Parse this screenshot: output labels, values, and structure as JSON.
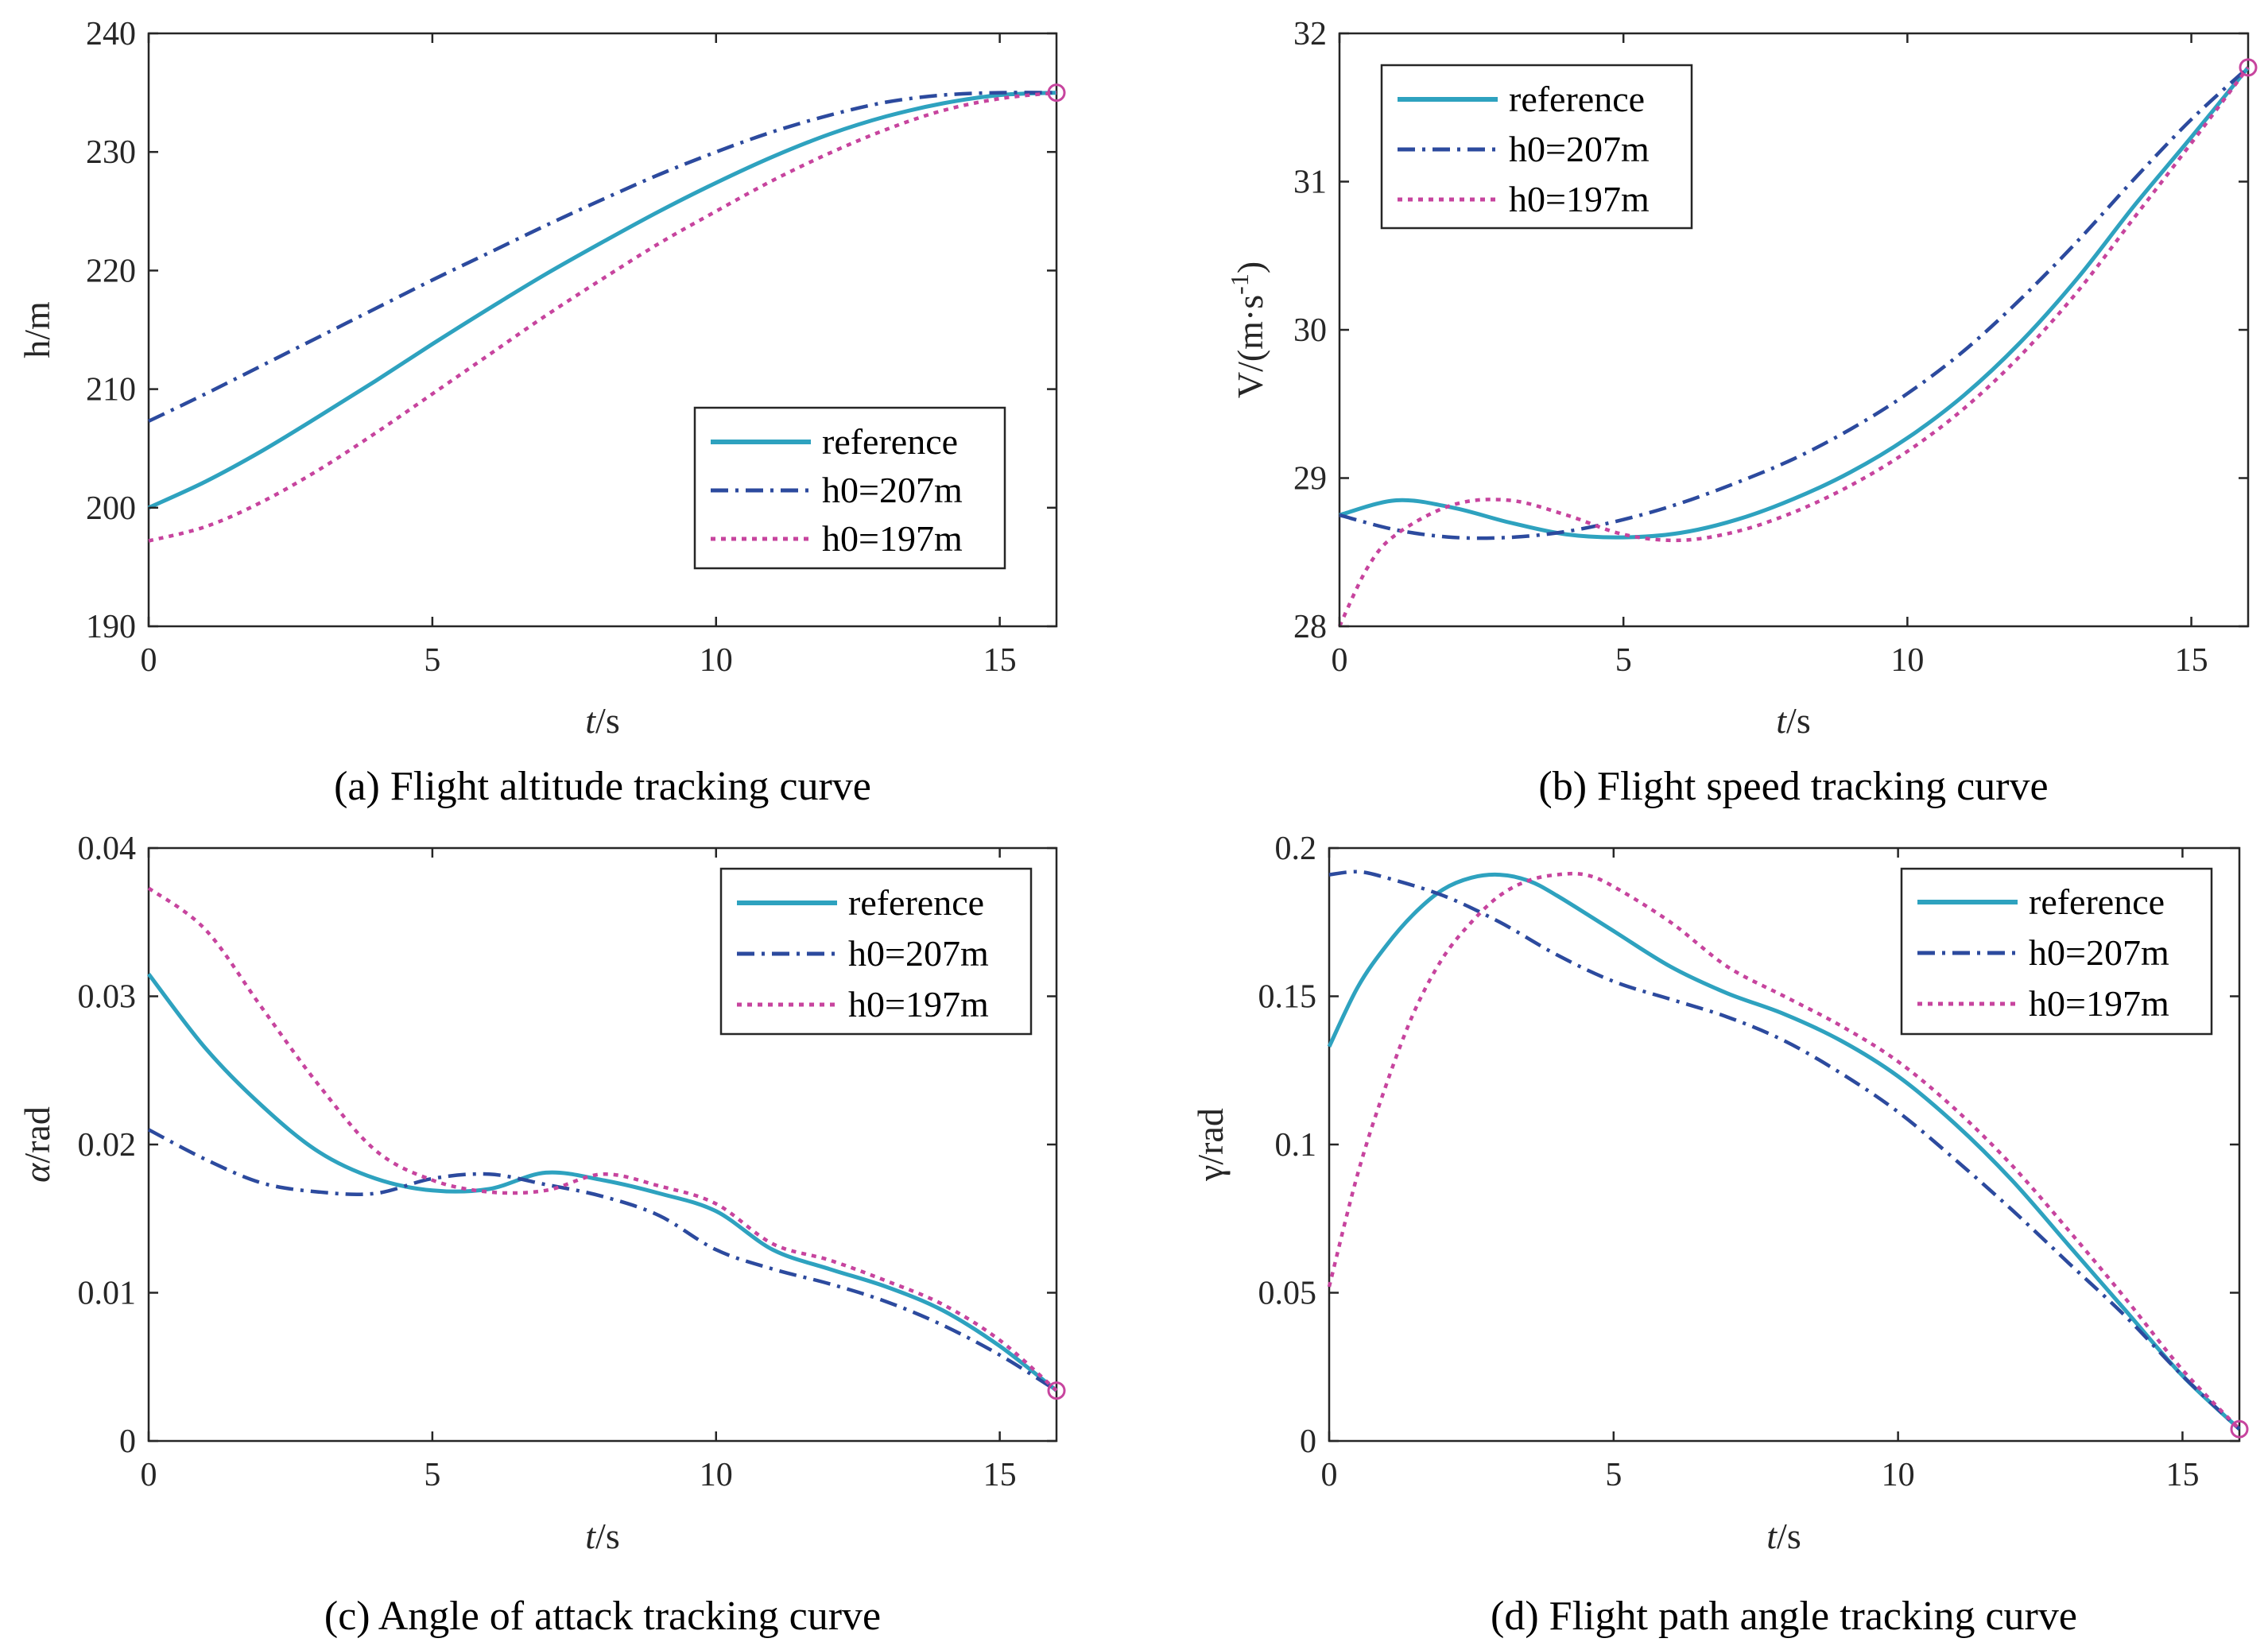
{
  "series_styles": {
    "reference": {
      "color": "#2EA2BF"
    },
    "h0=207m": {
      "color": "#2C4A9E"
    },
    "h0=197m": {
      "color": "#C7449E"
    }
  },
  "chart_data": [
    {
      "id": "a",
      "type": "line",
      "caption": "(a) Flight altitude tracking curve",
      "xlabel_italic": "t",
      "xlabel_rest": "/s",
      "ylabel": "h/m",
      "xlim": [
        0,
        16
      ],
      "ylim": [
        190,
        240
      ],
      "xticks": [
        0,
        5,
        10,
        15
      ],
      "yticks": [
        190,
        200,
        210,
        220,
        230,
        240
      ],
      "ytick_labels": [
        "190",
        "200",
        "210",
        "220",
        "230",
        "240"
      ],
      "legend": [
        "reference",
        "h0=207m",
        "h0=197m"
      ],
      "legend_position": "lower-right",
      "endpoint": [
        16,
        235
      ],
      "series": [
        {
          "name": "reference",
          "x": [
            0,
            1,
            2,
            3,
            4,
            5,
            6,
            7,
            8,
            9,
            10,
            11,
            12,
            13,
            14,
            15,
            16
          ],
          "y": [
            200,
            202.2,
            204.8,
            207.7,
            210.7,
            213.8,
            216.8,
            219.7,
            222.4,
            225.0,
            227.4,
            229.6,
            231.5,
            233.0,
            234.1,
            234.8,
            235
          ]
        },
        {
          "name": "h0=207m",
          "x": [
            0,
            1,
            2,
            3,
            4,
            5,
            6,
            7,
            8,
            9,
            10,
            11,
            12,
            13,
            14,
            15,
            16
          ],
          "y": [
            207.3,
            209.6,
            212.0,
            214.4,
            216.8,
            219.2,
            221.5,
            223.8,
            226.0,
            228.1,
            230.0,
            231.7,
            233.1,
            234.2,
            234.8,
            235.0,
            235
          ]
        },
        {
          "name": "h0=197m",
          "x": [
            0,
            1,
            2,
            3,
            4,
            5,
            6,
            7,
            8,
            9,
            10,
            11,
            12,
            13,
            14,
            15,
            16
          ],
          "y": [
            197.2,
            198.4,
            200.5,
            203.2,
            206.3,
            209.6,
            212.9,
            216.2,
            219.3,
            222.3,
            225.0,
            227.6,
            229.9,
            231.9,
            233.5,
            234.5,
            235
          ]
        }
      ]
    },
    {
      "id": "b",
      "type": "line",
      "caption": "(b) Flight speed tracking curve",
      "xlabel_italic": "t",
      "xlabel_rest": "/s",
      "ylabel": "V/(m·s",
      "ylabel_sup": "-1",
      "ylabel_close": ")",
      "xlim": [
        0,
        16
      ],
      "ylim": [
        28,
        32
      ],
      "xticks": [
        0,
        5,
        10,
        15
      ],
      "yticks": [
        28,
        29,
        30,
        31,
        32
      ],
      "ytick_labels": [
        "28",
        "29",
        "30",
        "31",
        "32"
      ],
      "legend": [
        "reference",
        "h0=207m",
        "h0=197m"
      ],
      "legend_position": "top-left",
      "endpoint": [
        16,
        31.77
      ],
      "series": [
        {
          "name": "reference",
          "x": [
            0,
            1,
            2,
            3,
            4,
            5,
            6,
            7,
            8,
            9,
            10,
            11,
            12,
            13,
            14,
            15,
            16
          ],
          "y": [
            28.75,
            28.85,
            28.8,
            28.7,
            28.62,
            28.6,
            28.63,
            28.72,
            28.86,
            29.04,
            29.27,
            29.56,
            29.92,
            30.35,
            30.84,
            31.3,
            31.77
          ]
        },
        {
          "name": "h0=207m",
          "x": [
            0,
            1,
            2,
            3,
            4,
            5,
            6,
            7,
            8,
            9,
            10,
            11,
            12,
            13,
            14,
            15,
            16
          ],
          "y": [
            28.75,
            28.65,
            28.6,
            28.6,
            28.64,
            28.72,
            28.83,
            28.97,
            29.13,
            29.33,
            29.57,
            29.86,
            30.21,
            30.6,
            31.02,
            31.42,
            31.77
          ]
        },
        {
          "name": "h0=197m",
          "x": [
            0,
            0.5,
            1,
            2,
            3,
            4,
            5,
            6,
            7,
            8,
            9,
            10,
            11,
            12,
            13,
            14,
            15,
            16
          ],
          "y": [
            28.0,
            28.4,
            28.62,
            28.82,
            28.85,
            28.75,
            28.62,
            28.58,
            28.64,
            28.77,
            28.95,
            29.18,
            29.47,
            29.83,
            30.26,
            30.76,
            31.26,
            31.77
          ]
        }
      ]
    },
    {
      "id": "c",
      "type": "line",
      "caption": "(c) Angle of attack tracking curve",
      "xlabel_italic": "t",
      "xlabel_rest": "/s",
      "ylabel_italic": "α",
      "ylabel": "/rad",
      "xlim": [
        0,
        16
      ],
      "ylim": [
        0,
        0.04
      ],
      "xticks": [
        0,
        5,
        10,
        15
      ],
      "yticks": [
        0,
        0.01,
        0.02,
        0.03,
        0.04
      ],
      "ytick_labels": [
        "0",
        "0.01",
        "0.02",
        "0.03",
        "0.04"
      ],
      "legend": [
        "reference",
        "h0=207m",
        "h0=197m"
      ],
      "legend_position": "top-right",
      "endpoint": [
        16,
        0.0034
      ],
      "series": [
        {
          "name": "reference",
          "x": [
            0,
            1,
            2,
            3,
            4,
            5,
            6,
            7,
            8,
            9,
            10,
            11,
            12,
            13,
            14,
            15,
            16
          ],
          "y": [
            0.0315,
            0.0265,
            0.0226,
            0.0195,
            0.0177,
            0.0169,
            0.017,
            0.0181,
            0.0176,
            0.0167,
            0.0155,
            0.0129,
            0.0116,
            0.0104,
            0.0088,
            0.0064,
            0.0034
          ]
        },
        {
          "name": "h0=207m",
          "x": [
            0,
            1,
            2,
            3,
            4,
            5,
            6,
            7,
            8,
            9,
            10,
            11,
            12,
            13,
            14,
            15,
            16
          ],
          "y": [
            0.021,
            0.019,
            0.0174,
            0.0168,
            0.0167,
            0.0177,
            0.018,
            0.0173,
            0.0165,
            0.0152,
            0.0129,
            0.0116,
            0.0106,
            0.0094,
            0.0078,
            0.0058,
            0.0034
          ]
        },
        {
          "name": "h0=197m",
          "x": [
            0,
            1,
            2,
            3,
            4,
            5,
            6,
            7,
            8,
            9,
            10,
            11,
            12,
            13,
            14,
            15,
            16
          ],
          "y": [
            0.0373,
            0.0345,
            0.0292,
            0.024,
            0.0196,
            0.0176,
            0.0168,
            0.0169,
            0.018,
            0.0172,
            0.016,
            0.0133,
            0.0122,
            0.0108,
            0.0092,
            0.0068,
            0.0034
          ]
        }
      ]
    },
    {
      "id": "d",
      "type": "line",
      "caption": "(d) Flight path angle tracking curve",
      "xlabel_italic": "t",
      "xlabel_rest": "/s",
      "ylabel": "γ/rad",
      "xlim": [
        0,
        16
      ],
      "ylim": [
        0,
        0.2
      ],
      "xticks": [
        0,
        5,
        10,
        15
      ],
      "yticks": [
        0,
        0.05,
        0.1,
        0.15,
        0.2
      ],
      "ytick_labels": [
        "0",
        "0.05",
        "0.1",
        "0.15",
        "0.2"
      ],
      "legend": [
        "reference",
        "h0=207m",
        "h0=197m"
      ],
      "legend_position": "top-right",
      "endpoint": [
        16,
        0.004
      ],
      "series": [
        {
          "name": "reference",
          "x": [
            0,
            0.5,
            1,
            1.5,
            2,
            2.5,
            3,
            3.5,
            4,
            5,
            6,
            7,
            8,
            9,
            10,
            11,
            12,
            13,
            14,
            15,
            16
          ],
          "y": [
            0.133,
            0.153,
            0.167,
            0.178,
            0.186,
            0.19,
            0.191,
            0.189,
            0.184,
            0.172,
            0.16,
            0.151,
            0.144,
            0.135,
            0.123,
            0.107,
            0.088,
            0.066,
            0.044,
            0.022,
            0.004
          ]
        },
        {
          "name": "h0=207m",
          "x": [
            0,
            0.5,
            1,
            2,
            3,
            4,
            5,
            6,
            7,
            8,
            9,
            10,
            11,
            12,
            13,
            14,
            15,
            16
          ],
          "y": [
            0.191,
            0.192,
            0.19,
            0.184,
            0.175,
            0.164,
            0.155,
            0.149,
            0.143,
            0.135,
            0.124,
            0.111,
            0.095,
            0.078,
            0.06,
            0.042,
            0.022,
            0.004
          ]
        },
        {
          "name": "h0=197m",
          "x": [
            0,
            0.5,
            1,
            1.5,
            2,
            2.5,
            3,
            3.5,
            4,
            4.5,
            5,
            6,
            7,
            8,
            9,
            10,
            11,
            12,
            13,
            14,
            15,
            16
          ],
          "y": [
            0.052,
            0.09,
            0.12,
            0.145,
            0.163,
            0.175,
            0.184,
            0.189,
            0.191,
            0.191,
            0.187,
            0.175,
            0.16,
            0.15,
            0.14,
            0.128,
            0.112,
            0.093,
            0.071,
            0.048,
            0.024,
            0.004
          ]
        }
      ]
    }
  ]
}
